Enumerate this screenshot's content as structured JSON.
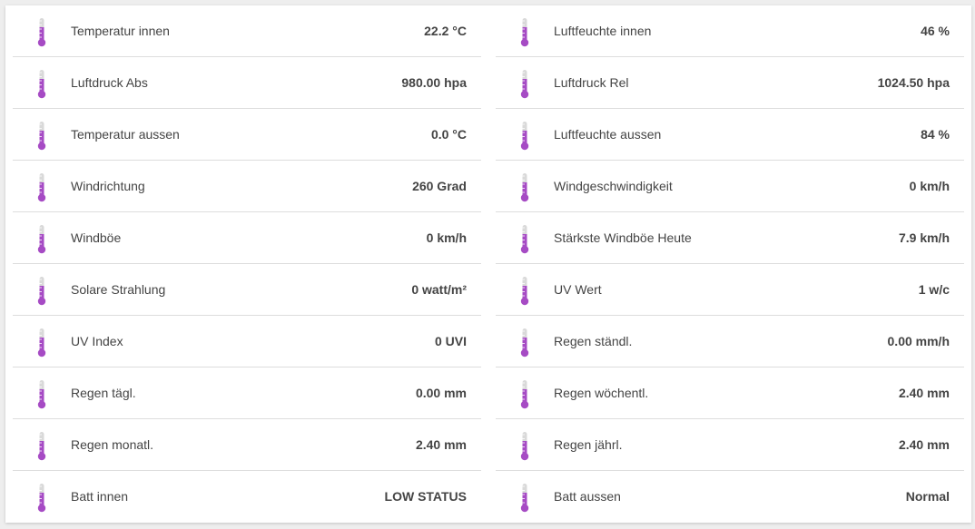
{
  "colors": {
    "icon_accent": "#a64bc4",
    "icon_base": "#d9d9d9",
    "text": "#444444",
    "divider": "#dddddd"
  },
  "left": [
    {
      "label": "Temperatur innen",
      "value": "22.2 °C",
      "icon": "thermometer-icon",
      "level": 0.6
    },
    {
      "label": "Luftdruck Abs",
      "value": "980.00 hpa",
      "icon": "thermometer-icon",
      "level": 0.6
    },
    {
      "label": "Temperatur aussen",
      "value": "0.0 °C",
      "icon": "thermometer-icon",
      "level": 0.6
    },
    {
      "label": "Windrichtung",
      "value": "260 Grad",
      "icon": "thermometer-icon",
      "level": 0.6
    },
    {
      "label": "Windböe",
      "value": "0 km/h",
      "icon": "thermometer-icon",
      "level": 0.6
    },
    {
      "label": "Solare Strahlung",
      "value": "0 watt/m²",
      "icon": "thermometer-icon",
      "level": 0.6
    },
    {
      "label": "UV Index",
      "value": "0 UVI",
      "icon": "thermometer-icon",
      "level": 0.6
    },
    {
      "label": "Regen tägl.",
      "value": "0.00 mm",
      "icon": "thermometer-icon",
      "level": 0.6
    },
    {
      "label": "Regen monatl.",
      "value": "2.40 mm",
      "icon": "thermometer-icon",
      "level": 0.6
    },
    {
      "label": "Batt innen",
      "value": "LOW STATUS",
      "icon": "thermometer-icon",
      "level": 0.6
    }
  ],
  "right": [
    {
      "label": "Luftfeuchte innen",
      "value": "46 %",
      "icon": "thermometer-icon",
      "level": 0.6
    },
    {
      "label": "Luftdruck Rel",
      "value": "1024.50 hpa",
      "icon": "thermometer-icon",
      "level": 0.6
    },
    {
      "label": "Luftfeuchte aussen",
      "value": "84 %",
      "icon": "thermometer-icon",
      "level": 0.6
    },
    {
      "label": "Windgeschwindigkeit",
      "value": "0 km/h",
      "icon": "thermometer-icon",
      "level": 0.6
    },
    {
      "label": "Stärkste Windböe Heute",
      "value": "7.9 km/h",
      "icon": "thermometer-icon",
      "level": 0.6
    },
    {
      "label": "UV Wert",
      "value": "1 w/c",
      "icon": "thermometer-icon",
      "level": 0.6
    },
    {
      "label": "Regen ständl.",
      "value": "0.00 mm/h",
      "icon": "thermometer-icon",
      "level": 0.6
    },
    {
      "label": "Regen wöchentl.",
      "value": "2.40 mm",
      "icon": "thermometer-icon",
      "level": 0.6
    },
    {
      "label": "Regen jährl.",
      "value": "2.40 mm",
      "icon": "thermometer-icon",
      "level": 0.6
    },
    {
      "label": "Batt aussen",
      "value": "Normal",
      "icon": "thermometer-icon",
      "level": 0.6
    }
  ]
}
